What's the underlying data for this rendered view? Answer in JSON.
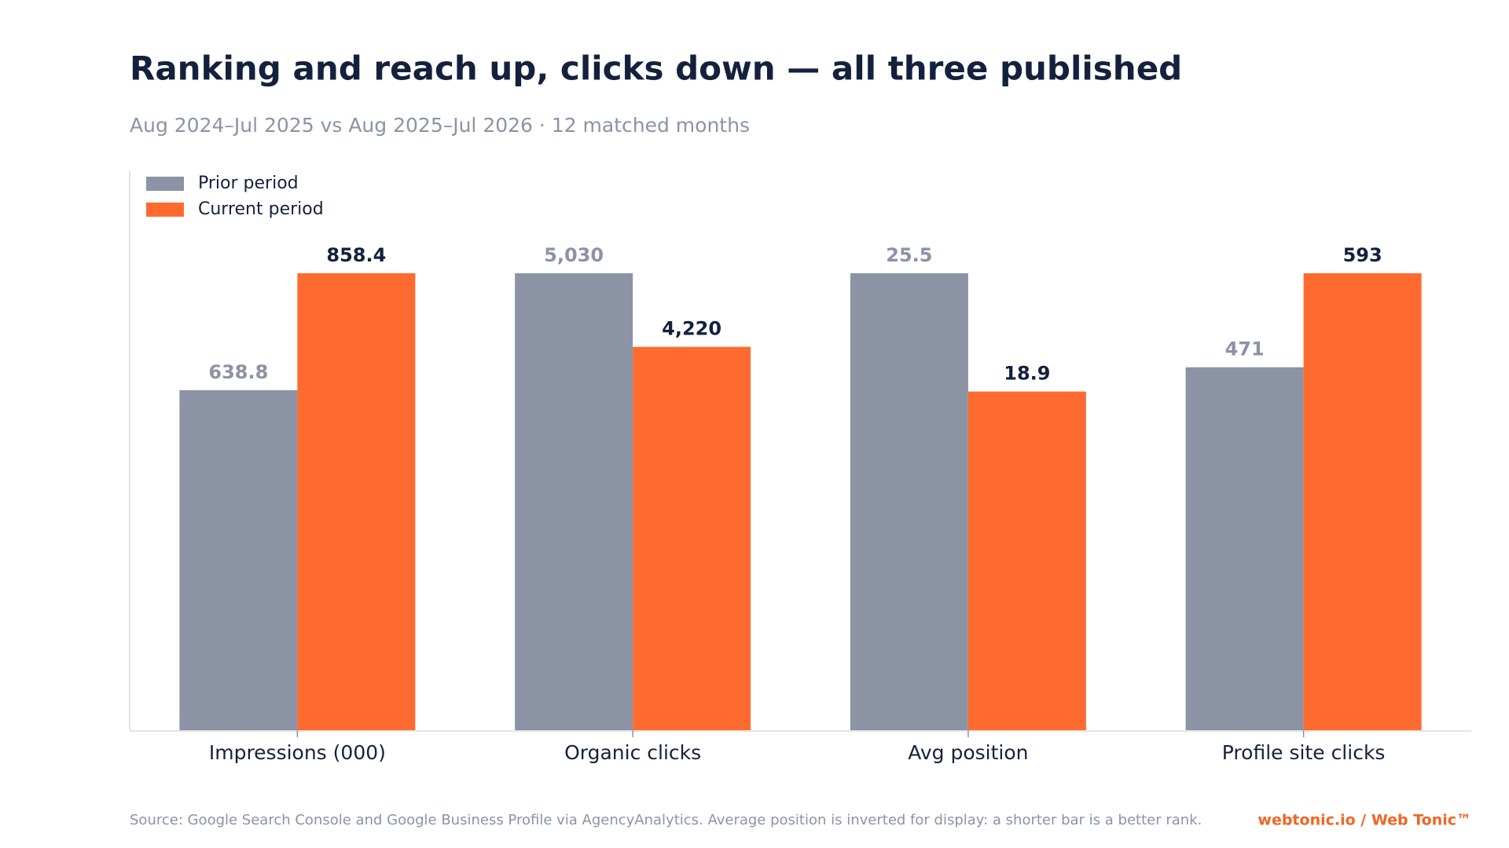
{
  "chart_data": {
    "type": "bar",
    "title": "Ranking and reach up, clicks down — all three published",
    "subtitle": "Aug 2024–Jul 2025 vs Aug 2025–Jul 2026 · 12 matched months",
    "categories": [
      "Impressions (000)",
      "Organic clicks",
      "Avg position",
      "Profile site clicks"
    ],
    "series": [
      {
        "name": "Prior period",
        "color": "#8b93a5",
        "values": [
          638.8,
          5030,
          25.5,
          471
        ],
        "value_labels": [
          "638.8",
          "5,030",
          "25.5",
          "471"
        ]
      },
      {
        "name": "Current period",
        "color": "#ff6b2f",
        "values": [
          858.4,
          4220,
          18.9,
          593
        ],
        "value_labels": [
          "858.4",
          "4,220",
          "18.9",
          "593"
        ]
      }
    ],
    "legend": "top-left",
    "source": "Source: Google Search Console and Google Business Profile via AgencyAnalytics. Average position is inverted for display: a shorter bar is a better rank.",
    "brand": "webtonic.io / Web Tonic™"
  }
}
